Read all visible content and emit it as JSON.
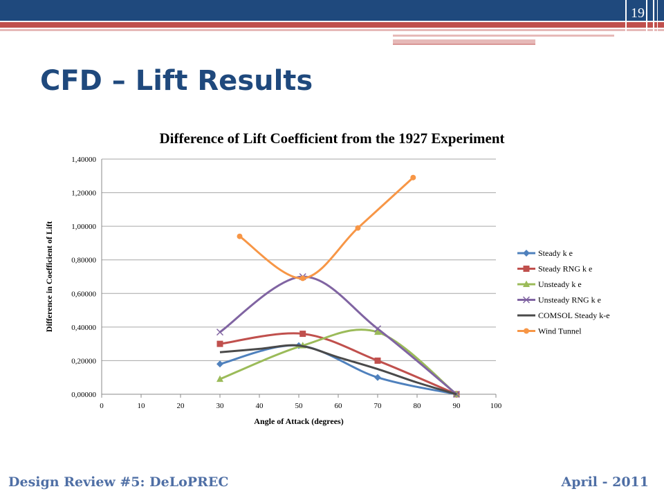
{
  "slide": {
    "page_number": "19",
    "title": "CFD – Lift Results",
    "footer_left": "Design Review #5: DeLoPREC",
    "footer_right": "April - 2011"
  },
  "colors": {
    "header_blue": "#1f497d",
    "header_red": "#c0504d",
    "title": "#1f497d",
    "footer": "#4f6fa5"
  },
  "chart_data": {
    "type": "line",
    "title": "Difference of Lift Coefficient from the 1927 Experiment",
    "xlabel": "Angle of Attack (degrees)",
    "ylabel": "Difference in Coefficient of Lift",
    "xlim": [
      0,
      100
    ],
    "ylim": [
      0,
      1.4
    ],
    "xticks": [
      "0",
      "10",
      "20",
      "30",
      "40",
      "50",
      "60",
      "70",
      "80",
      "90",
      "100"
    ],
    "yticks": [
      "0,00000",
      "0,20000",
      "0,40000",
      "0,60000",
      "0,80000",
      "1,00000",
      "1,20000",
      "1,40000"
    ],
    "grid": "horizontal",
    "legend_position": "right",
    "series": [
      {
        "name": "Steady k e",
        "color": "#4f81bd",
        "marker": "diamond",
        "points": [
          [
            30,
            0.18
          ],
          [
            50,
            0.29
          ],
          [
            70,
            0.1
          ],
          [
            90,
            0.0
          ]
        ]
      },
      {
        "name": "Steady RNG k e",
        "color": "#c0504d",
        "marker": "square",
        "points": [
          [
            30,
            0.3
          ],
          [
            51,
            0.36
          ],
          [
            70,
            0.2
          ],
          [
            90,
            0.0
          ]
        ]
      },
      {
        "name": "Unsteady k e",
        "color": "#9bbb59",
        "marker": "triangle",
        "points": [
          [
            30,
            0.09
          ],
          [
            51,
            0.29
          ],
          [
            70,
            0.37
          ],
          [
            90,
            0.0
          ]
        ]
      },
      {
        "name": "Unsteady RNG k e",
        "color": "#8064a2",
        "marker": "x",
        "points": [
          [
            30,
            0.37
          ],
          [
            51,
            0.7
          ],
          [
            70,
            0.39
          ],
          [
            90,
            0.0
          ]
        ]
      },
      {
        "name": "COMSOL Steady k-e",
        "color": "#4a4a4a",
        "marker": "none",
        "points": [
          [
            30,
            0.25
          ],
          [
            40,
            0.27
          ],
          [
            50,
            0.29
          ],
          [
            60,
            0.22
          ],
          [
            70,
            0.15
          ],
          [
            80,
            0.07
          ],
          [
            90,
            0.0
          ]
        ]
      },
      {
        "name": "Wind Tunnel",
        "color": "#f79646",
        "marker": "circle",
        "points": [
          [
            35,
            0.94
          ],
          [
            51,
            0.69
          ],
          [
            65,
            0.99
          ],
          [
            79,
            1.29
          ]
        ]
      }
    ]
  }
}
